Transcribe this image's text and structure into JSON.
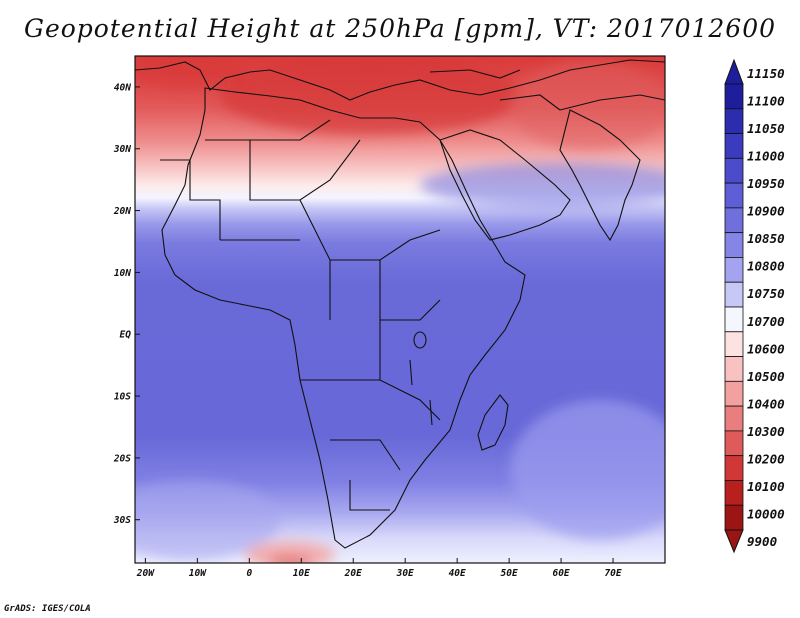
{
  "title": "Geopotential Height at 250hPa [gpm], VT: 2017012600",
  "footer": "GrADS: IGES/COLA",
  "map": {
    "lon_range": [
      -22,
      80
    ],
    "lat_range": [
      -37,
      45
    ],
    "x_ticks": [
      "20W",
      "10W",
      "0",
      "10E",
      "20E",
      "30E",
      "40E",
      "50E",
      "60E",
      "70E"
    ],
    "y_ticks": [
      "40N",
      "30N",
      "20N",
      "10N",
      "EQ",
      "10S",
      "20S",
      "30S"
    ]
  },
  "colorbar": {
    "levels": [
      "11150",
      "11100",
      "11050",
      "11000",
      "10950",
      "10900",
      "10850",
      "10800",
      "10750",
      "10700",
      "10600",
      "10500",
      "10400",
      "10300",
      "10200",
      "10100",
      "10000",
      "9900"
    ],
    "colors": [
      "#1e1e9c",
      "#2c2cae",
      "#3b3bbf",
      "#4b4bcc",
      "#5e5ed6",
      "#7070dd",
      "#8585e6",
      "#a3a3ef",
      "#c8c8f6",
      "#f6f6ff",
      "#fde2e2",
      "#f8c2c2",
      "#f2a0a0",
      "#ea7d7d",
      "#df5a5a",
      "#d03838",
      "#b81f1f",
      "#9c1515"
    ]
  }
}
